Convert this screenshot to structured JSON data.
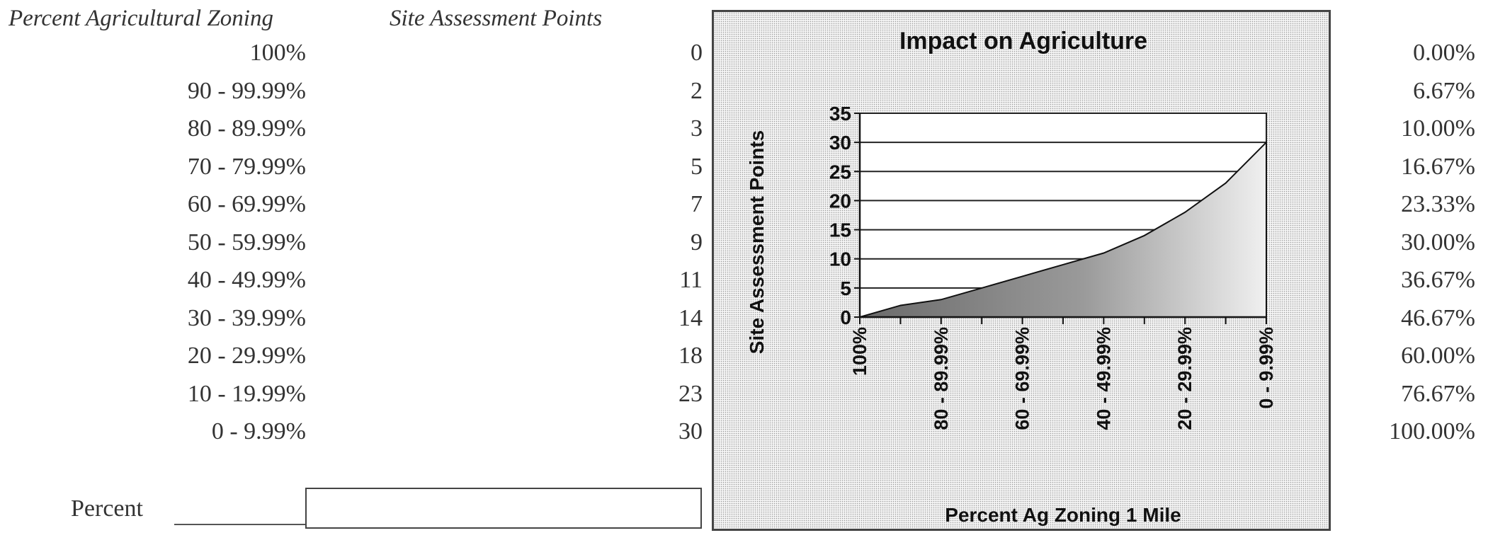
{
  "headers": {
    "zoning": "Percent Agricultural Zoning",
    "points": "Site Assessment Points"
  },
  "table": [
    {
      "range": "100%",
      "points": "0",
      "pct": "0.00%"
    },
    {
      "range": "90 - 99.99%",
      "points": "2",
      "pct": "6.67%"
    },
    {
      "range": "80 - 89.99%",
      "points": "3",
      "pct": "10.00%"
    },
    {
      "range": "70 - 79.99%",
      "points": "5",
      "pct": "16.67%"
    },
    {
      "range": "60 - 69.99%",
      "points": "7",
      "pct": "23.33%"
    },
    {
      "range": "50 - 59.99%",
      "points": "9",
      "pct": "30.00%"
    },
    {
      "range": "40 - 49.99%",
      "points": "11",
      "pct": "36.67%"
    },
    {
      "range": "30 - 39.99%",
      "points": "14",
      "pct": "46.67%"
    },
    {
      "range": "20 - 29.99%",
      "points": "18",
      "pct": "60.00%"
    },
    {
      "range": "10 - 19.99%",
      "points": "23",
      "pct": "76.67%"
    },
    {
      "range": "0 - 9.99%",
      "points": "30",
      "pct": "100.00%"
    }
  ],
  "percent_input": {
    "label": "Percent",
    "value": ""
  },
  "chart_data": {
    "type": "area",
    "title": "Impact on Agriculture",
    "xlabel": "Percent Ag Zoning 1 Mile",
    "ylabel": "Site Assessment Points",
    "categories": [
      "100%",
      "90 - 99.99%",
      "80 - 89.99%",
      "70 - 79.99%",
      "60 - 69.99%",
      "50 - 59.99%",
      "40 - 49.99%",
      "30 - 39.99%",
      "20 - 29.99%",
      "10 - 19.99%",
      "0 - 9.99%"
    ],
    "shown_tick_labels": [
      "100%",
      "80 - 89.99%",
      "60 - 69.99%",
      "40 - 49.99%",
      "20 - 29.99%",
      "0 - 9.99%"
    ],
    "values": [
      0,
      2,
      3,
      5,
      7,
      9,
      11,
      14,
      18,
      23,
      30
    ],
    "ylim": [
      0,
      35
    ],
    "yticks": [
      0,
      5,
      10,
      15,
      20,
      25,
      30,
      35
    ],
    "grid": true,
    "legend": "none"
  }
}
